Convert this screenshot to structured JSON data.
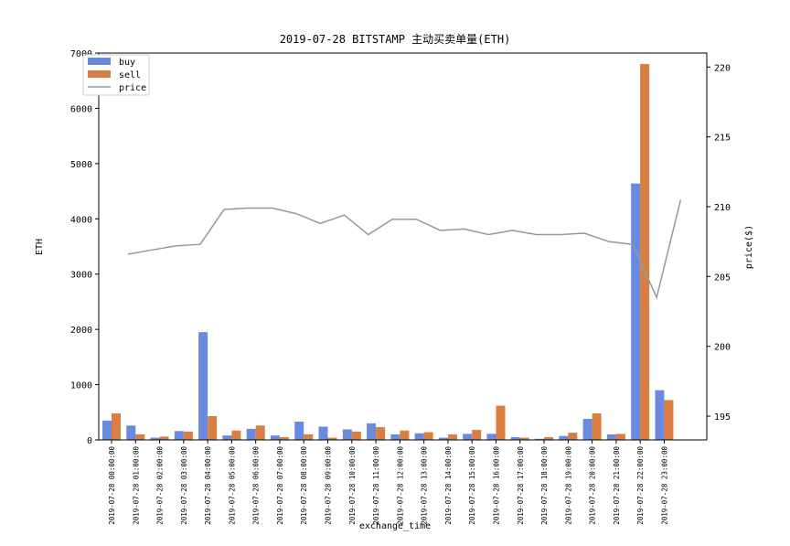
{
  "chart_data": {
    "type": "bar",
    "title": "2019-07-28 BITSTAMP 主动买卖单量(ETH)",
    "xlabel": "exchange_time",
    "ylabel": "ETH",
    "y2label": "price($)",
    "ylim": [
      0,
      7000
    ],
    "y2lim": [
      193.3,
      221
    ],
    "yticks": [
      0,
      1000,
      2000,
      3000,
      4000,
      5000,
      6000,
      7000
    ],
    "y2ticks": [
      195,
      200,
      205,
      210,
      215,
      220
    ],
    "legend_position": "top-left",
    "grid": false,
    "categories": [
      "2019-07-28 00:00:00",
      "2019-07-28 01:00:00",
      "2019-07-28 02:00:00",
      "2019-07-28 03:00:00",
      "2019-07-28 04:00:00",
      "2019-07-28 05:00:00",
      "2019-07-28 06:00:00",
      "2019-07-28 07:00:00",
      "2019-07-28 08:00:00",
      "2019-07-28 09:00:00",
      "2019-07-28 10:00:00",
      "2019-07-28 11:00:00",
      "2019-07-28 12:00:00",
      "2019-07-28 13:00:00",
      "2019-07-28 14:00:00",
      "2019-07-28 15:00:00",
      "2019-07-28 16:00:00",
      "2019-07-28 17:00:00",
      "2019-07-28 18:00:00",
      "2019-07-28 19:00:00",
      "2019-07-28 20:00:00",
      "2019-07-28 21:00:00",
      "2019-07-28 22:00:00",
      "2019-07-28 23:00:00"
    ],
    "series": [
      {
        "name": "buy",
        "kind": "bar",
        "axis": "left",
        "color": "#6a8ae0",
        "values": [
          350,
          260,
          40,
          160,
          1950,
          80,
          200,
          80,
          330,
          240,
          190,
          300,
          100,
          120,
          40,
          110,
          110,
          50,
          20,
          70,
          380,
          100,
          4640,
          900
        ]
      },
      {
        "name": "sell",
        "kind": "bar",
        "axis": "left",
        "color": "#d97d41",
        "values": [
          480,
          100,
          60,
          150,
          430,
          170,
          260,
          50,
          100,
          40,
          150,
          230,
          170,
          140,
          100,
          180,
          620,
          40,
          50,
          130,
          480,
          110,
          6800,
          720
        ]
      },
      {
        "name": "price",
        "kind": "line",
        "axis": "right",
        "color": "#8e9aa6",
        "values": [
          206.6,
          206.9,
          207.2,
          207.3,
          209.8,
          209.9,
          209.9,
          209.5,
          208.8,
          209.4,
          208,
          209.1,
          209.1,
          208.3,
          208.4,
          208,
          208.3,
          208,
          208,
          208.1,
          207.5,
          207.3,
          203.5,
          210.5
        ]
      }
    ]
  }
}
